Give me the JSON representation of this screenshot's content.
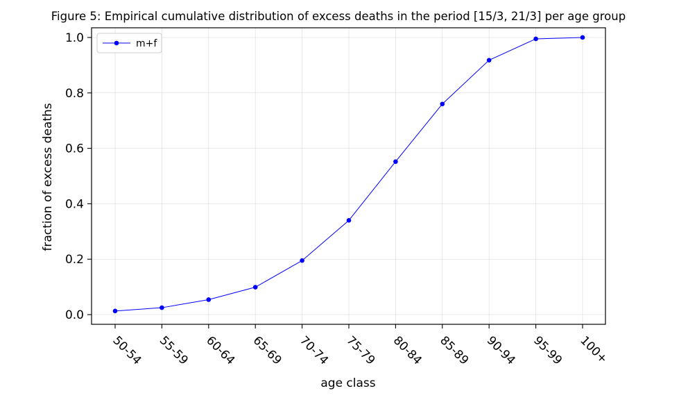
{
  "chart_data": {
    "type": "line",
    "title": "Figure 5: Empirical cumulative distribution of excess deaths in the period [15/3, 21/3] per age group",
    "xlabel": "age class",
    "ylabel": "fraction of excess deaths",
    "categories": [
      "50-54",
      "55-59",
      "60-64",
      "65-69",
      "70-74",
      "75-79",
      "80-84",
      "85-89",
      "90-94",
      "95-99",
      "100+"
    ],
    "series": [
      {
        "name": "m+f",
        "color": "#0000ff",
        "marker": "circle",
        "values": [
          0.013,
          0.025,
          0.054,
          0.099,
          0.195,
          0.34,
          0.552,
          0.76,
          0.918,
          0.995,
          1.0
        ]
      }
    ],
    "ylim": [
      -0.035,
      1.035
    ],
    "yticks": [
      0.0,
      0.2,
      0.4,
      0.6,
      0.8,
      1.0
    ],
    "ytick_labels": [
      "0.0",
      "0.2",
      "0.4",
      "0.6",
      "0.8",
      "1.0"
    ],
    "grid": true,
    "legend_position": "top-left",
    "xtick_rotation": "-45"
  }
}
